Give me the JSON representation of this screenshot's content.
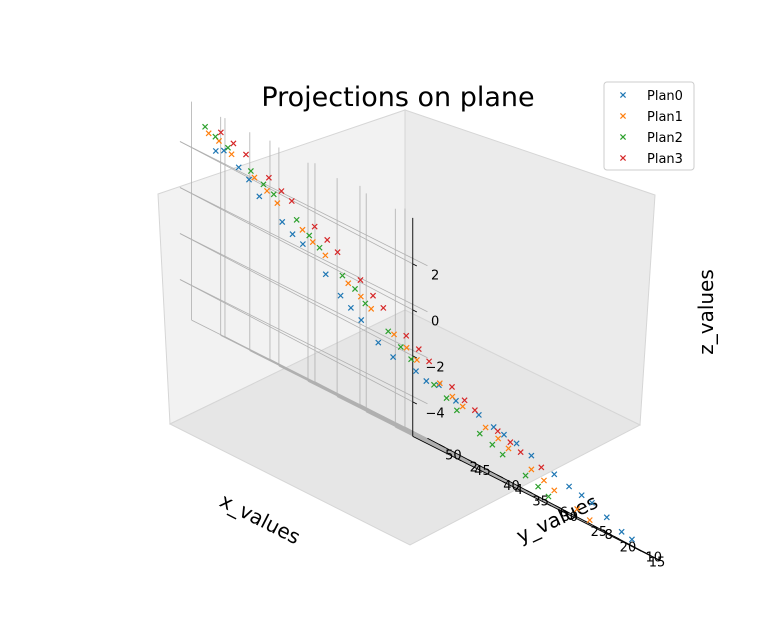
{
  "chart_data": {
    "type": "scatter",
    "title": "Projections on plane",
    "xlabel": "x_values",
    "ylabel": "y_values",
    "zlabel": "z_values",
    "xlim": [
      12,
      52
    ],
    "ylim": [
      0,
      11
    ],
    "zlim": [
      -5.5,
      4
    ],
    "xticks": [
      "15",
      "20",
      "25",
      "30",
      "35",
      "40",
      "45",
      "50"
    ],
    "yticks": [
      "2",
      "4",
      "6",
      "8",
      "10"
    ],
    "zticks": [
      "−4",
      "−2",
      "0",
      "2"
    ],
    "grid": true,
    "legend_position": "top-right",
    "series": [
      {
        "name": "Plan0",
        "color": "#1f77b4",
        "marker": "x",
        "points": [
          [
            46,
            0.4,
            2.6
          ],
          [
            45,
            0.8,
            2.2
          ],
          [
            43,
            1.2,
            1.4
          ],
          [
            41,
            1.7,
            0.8
          ],
          [
            39,
            2.1,
            0.3
          ],
          [
            37,
            2.6,
            -0.5
          ],
          [
            36,
            3,
            -1.1
          ],
          [
            34,
            3.4,
            -1.7
          ],
          [
            33,
            3.9,
            -2.3
          ],
          [
            32,
            4.3,
            -2.6
          ],
          [
            30,
            4.8,
            -2.7
          ],
          [
            28,
            5.3,
            -2.8
          ],
          [
            27,
            5.8,
            -3.1
          ],
          [
            25,
            6.3,
            -3.2
          ],
          [
            24,
            6.7,
            -3.4
          ],
          [
            22,
            7.2,
            -3.6
          ],
          [
            21,
            7.6,
            -3.8
          ],
          [
            19,
            8.1,
            -4.1
          ],
          [
            18,
            8.5,
            -4.3
          ],
          [
            16,
            9,
            -4.5
          ],
          [
            15,
            9.4,
            -4.8
          ],
          [
            14,
            9.8,
            -5.1
          ],
          [
            47,
            0.3,
            2.4
          ],
          [
            44,
            1,
            1.9
          ],
          [
            40,
            1.9,
            0.5
          ],
          [
            35,
            3.2,
            -1.4
          ],
          [
            29,
            5,
            -2.9
          ],
          [
            23,
            6.9,
            -3.5
          ],
          [
            17,
            8.8,
            -4.4
          ],
          [
            13,
            10,
            -5.2
          ]
        ]
      },
      {
        "name": "Plan1",
        "color": "#ff7f0e",
        "marker": "x",
        "points": [
          [
            49,
            0.5,
            3
          ],
          [
            47,
            1,
            2.6
          ],
          [
            45,
            1.5,
            2.1
          ],
          [
            43,
            2,
            1.5
          ],
          [
            41,
            2.6,
            0.9
          ],
          [
            39,
            3.1,
            0.3
          ],
          [
            37,
            3.6,
            -0.4
          ],
          [
            35,
            4.1,
            -1
          ],
          [
            33,
            4.6,
            -1.6
          ],
          [
            31,
            5.1,
            -2.2
          ],
          [
            29,
            5.6,
            -2.7
          ],
          [
            27,
            6.1,
            -3.2
          ],
          [
            25,
            6.6,
            -3.6
          ],
          [
            23,
            7.1,
            -4
          ],
          [
            21,
            7.6,
            -4.4
          ],
          [
            19,
            8.1,
            -4.8
          ],
          [
            17,
            8.6,
            -5.1
          ],
          [
            48,
            0.7,
            2.9
          ],
          [
            44,
            1.8,
            1.8
          ],
          [
            40,
            2.8,
            0.6
          ],
          [
            36,
            3.9,
            -0.7
          ],
          [
            32,
            4.9,
            -1.9
          ],
          [
            28,
            5.9,
            -3
          ],
          [
            24,
            6.9,
            -3.8
          ],
          [
            20,
            7.9,
            -4.6
          ],
          [
            16,
            8.9,
            -5.3
          ]
        ]
      },
      {
        "name": "Plan2",
        "color": "#2ca02c",
        "marker": "x",
        "points": [
          [
            50,
            0.6,
            3.2
          ],
          [
            48,
            1.1,
            2.8
          ],
          [
            46,
            1.6,
            2.3
          ],
          [
            44,
            2.1,
            1.8
          ],
          [
            42,
            2.6,
            1.2
          ],
          [
            40,
            3.1,
            0.5
          ],
          [
            38,
            3.6,
            -0.2
          ],
          [
            36,
            4.1,
            -0.9
          ],
          [
            34,
            4.6,
            -1.6
          ],
          [
            32,
            5.1,
            -2.3
          ],
          [
            30,
            5.6,
            -2.9
          ],
          [
            28,
            6.1,
            -3.5
          ],
          [
            26,
            6.6,
            -4
          ],
          [
            24,
            7.1,
            -4.4
          ],
          [
            22,
            7.6,
            -4.8
          ],
          [
            20,
            8.1,
            -5.2
          ],
          [
            49,
            0.8,
            3
          ],
          [
            45,
            1.9,
            2
          ],
          [
            41,
            2.9,
            0.8
          ],
          [
            37,
            3.9,
            -0.5
          ],
          [
            33,
            4.9,
            -2
          ],
          [
            29,
            5.9,
            -3.2
          ],
          [
            25,
            6.9,
            -4.2
          ],
          [
            21,
            7.9,
            -5
          ]
        ]
      },
      {
        "name": "Plan3",
        "color": "#d62728",
        "marker": "x",
        "points": [
          [
            50,
            1.3,
            3.3
          ],
          [
            48,
            1.9,
            2.9
          ],
          [
            46,
            2.4,
            2.4
          ],
          [
            44,
            2.9,
            1.9
          ],
          [
            42,
            3.4,
            1.3
          ],
          [
            40,
            3.9,
            0.7
          ],
          [
            38,
            4.4,
            0
          ],
          [
            36,
            4.9,
            -0.7
          ],
          [
            34,
            5.4,
            -1.4
          ],
          [
            32,
            5.9,
            -2
          ],
          [
            30,
            6.4,
            -2.6
          ],
          [
            28,
            6.9,
            -3.1
          ],
          [
            26,
            7.4,
            -3.5
          ],
          [
            24,
            7.9,
            -3.9
          ],
          [
            49,
            1.6,
            3.1
          ],
          [
            45,
            2.7,
            2.1
          ],
          [
            41,
            3.7,
            1
          ],
          [
            37,
            4.7,
            -0.4
          ],
          [
            33,
            5.7,
            -1.7
          ],
          [
            29,
            6.7,
            -2.9
          ],
          [
            25,
            7.7,
            -3.7
          ],
          [
            22,
            8.3,
            -4.1
          ]
        ]
      }
    ]
  }
}
